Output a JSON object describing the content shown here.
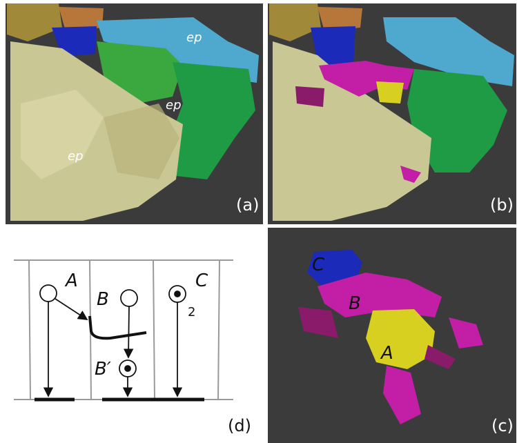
{
  "panels": {
    "a": {
      "label": "(a)",
      "annotations": [
        "ep",
        "ep",
        "ep"
      ]
    },
    "b": {
      "label": "(b)"
    },
    "c": {
      "label": "(c)",
      "annotations": [
        "C",
        "B",
        "A"
      ]
    },
    "d": {
      "label": "(d)",
      "nodes": [
        "A",
        "B",
        "C",
        "B′"
      ],
      "subscript": "2"
    }
  }
}
